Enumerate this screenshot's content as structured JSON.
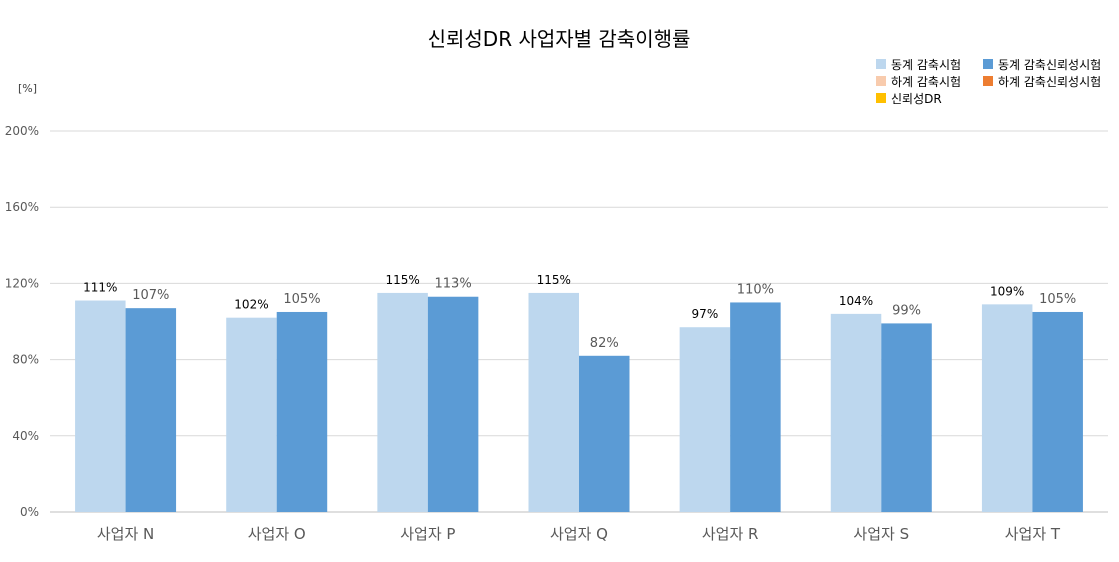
{
  "chart_data": {
    "type": "bar",
    "title": "신뢰성DR 사업자별 감축이행률",
    "ylabel": "[%]",
    "ylim": [
      0,
      200
    ],
    "yticks": [
      "0%",
      "40%",
      "80%",
      "120%",
      "160%",
      "200%"
    ],
    "ytick_values": [
      0,
      40,
      80,
      120,
      160,
      200
    ],
    "grid": true,
    "legend_position": "top-right",
    "categories": [
      "사업자 N",
      "사업자 O",
      "사업자 P",
      "사업자 Q",
      "사업자 R",
      "사업자 S",
      "사업자 T"
    ],
    "legend": [
      {
        "name": "동계 감축시험",
        "color": "#bdd7ee"
      },
      {
        "name": "동계 감축신뢰성시험",
        "color": "#5b9bd5"
      },
      {
        "name": "하계 감축시험",
        "color": "#f8cbad"
      },
      {
        "name": "하계 감축신뢰성시험",
        "color": "#ed7d31"
      },
      {
        "name": "신뢰성DR",
        "color": "#ffc000"
      }
    ],
    "series": [
      {
        "name": "동계 감축시험",
        "color": "#bdd7ee",
        "values": [
          111,
          102,
          115,
          115,
          97,
          104,
          109
        ],
        "labels": [
          "111%",
          "102%",
          "115%",
          "115%",
          "97%",
          "104%",
          "109%"
        ]
      },
      {
        "name": "동계 감축신뢰성시험",
        "color": "#5b9bd5",
        "values": [
          107,
          105,
          113,
          82,
          110,
          99,
          105
        ],
        "labels": [
          "107%",
          "105%",
          "113%",
          "82%",
          "110%",
          "99%",
          "105%"
        ]
      }
    ]
  }
}
